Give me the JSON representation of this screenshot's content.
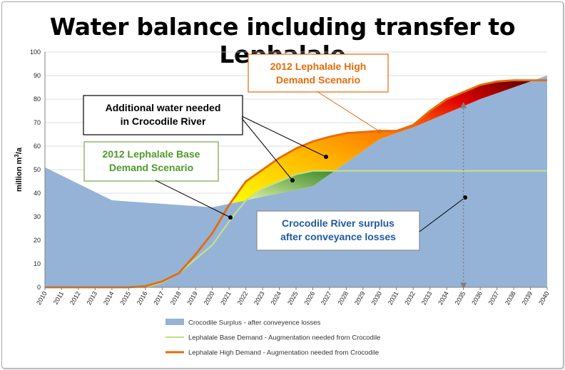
{
  "title": "Water balance including transfer to Lephalale",
  "chart_data": {
    "type": "area",
    "title": "Water balance including transfer to Lephalale",
    "ylabel": "million m³/a",
    "ylabel_main": "million m",
    "ylabel_sup": "3",
    "ylabel_tail": "/a",
    "ylim": [
      0,
      100
    ],
    "yticks": [
      "0",
      "10",
      "20",
      "30",
      "40",
      "50",
      "60",
      "70",
      "80",
      "90",
      "100"
    ],
    "categories": [
      "2010",
      "2011",
      "2012",
      "2013",
      "2014",
      "2015",
      "2016",
      "2017",
      "2018",
      "2019",
      "2020",
      "2021",
      "2022",
      "2023",
      "2024",
      "2025",
      "2026",
      "2027",
      "2028",
      "2029",
      "2030",
      "2031",
      "2032",
      "2033",
      "2034",
      "2035",
      "2036",
      "2037",
      "2038",
      "2039",
      "2040"
    ],
    "series": [
      {
        "name": "Crocodile Surplus - after conveyence losses",
        "color": "#95b3d7",
        "values": [
          51,
          47.5,
          44,
          40.5,
          37,
          36.5,
          36,
          35.5,
          35,
          34.5,
          34,
          35.5,
          37,
          38.5,
          40,
          41.5,
          43,
          48,
          53,
          58,
          63,
          65.5,
          68,
          71,
          74,
          77,
          80,
          82.5,
          85,
          87.5,
          90
        ]
      },
      {
        "name": "Lephalale Base Demand - Augmentation needed from Crocodile",
        "color": "#c4e08c",
        "values": [
          0,
          0,
          0,
          0,
          0,
          0,
          0,
          2,
          6,
          12,
          18,
          28,
          37,
          42,
          45,
          48,
          49.5,
          49.5,
          49.5,
          49.5,
          49.5,
          49.5,
          49.5,
          49.5,
          49.5,
          49.5,
          49.5,
          49.5,
          49.5,
          49.5,
          49.5
        ]
      },
      {
        "name": "Lephalale High Demand - Augmentation needed from Crocodile",
        "color": "#e46c0a",
        "values": [
          0,
          0,
          0,
          0,
          0,
          0,
          0.5,
          2.5,
          6,
          14,
          23,
          35,
          45,
          50,
          55,
          59,
          62,
          64,
          65.5,
          66,
          66.5,
          66.5,
          69,
          75,
          80,
          83,
          86,
          87.5,
          88,
          88,
          88
        ]
      }
    ],
    "annotations": [
      {
        "text": [
          "2012 Lephalale High",
          "Demand Scenario"
        ],
        "color": "#e46c0a",
        "border": "#e46c0a"
      },
      {
        "text": [
          "Additional water needed",
          "in Crocodile River"
        ],
        "color": "#000000",
        "border": "#000000"
      },
      {
        "text": [
          "2012 Lephalale Base",
          "Demand Scenario"
        ],
        "color": "#4e9a2a",
        "border": "#7aa34a"
      },
      {
        "text": [
          "Crocodile River surplus",
          "after conveyance losses"
        ],
        "color": "#1f5aa6",
        "border": "#8c8c8c"
      }
    ],
    "grid": true,
    "legend_position": "bottom"
  }
}
